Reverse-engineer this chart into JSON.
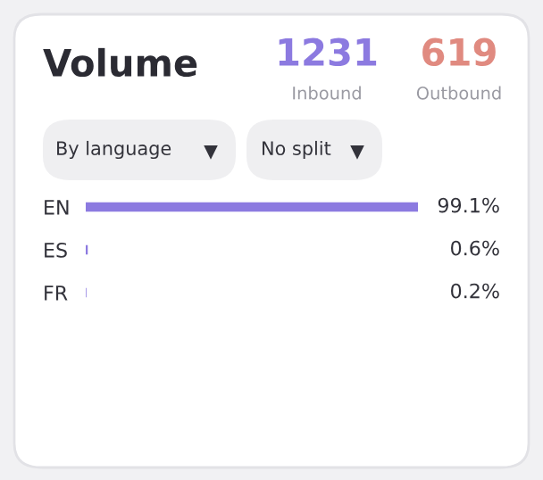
{
  "chart_data": {
    "type": "bar",
    "orientation": "horizontal",
    "title": "Volume",
    "categories": [
      "EN",
      "ES",
      "FR"
    ],
    "values": [
      99.1,
      0.6,
      0.2
    ],
    "value_labels": [
      "99.1%",
      "0.6%",
      "0.2%"
    ],
    "color": "#8c7ae0",
    "annotations": [
      "1231",
      "Inbound",
      "619",
      "Outbound",
      "By language",
      "No split"
    ]
  }
}
